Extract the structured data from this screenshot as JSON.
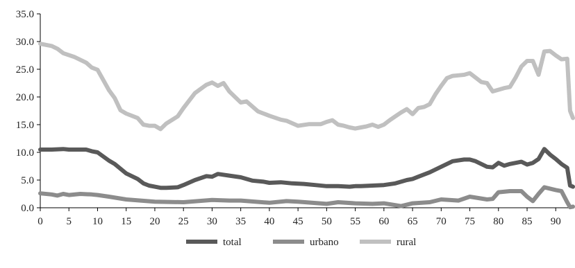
{
  "chart_data": {
    "type": "line",
    "title": "",
    "xlabel": "",
    "ylabel": "",
    "xlim": [
      0,
      93
    ],
    "ylim": [
      0,
      35
    ],
    "x_ticks": [
      0,
      5,
      10,
      15,
      20,
      25,
      30,
      35,
      40,
      45,
      50,
      55,
      60,
      65,
      70,
      75,
      80,
      85,
      90
    ],
    "x_tick_labels": [
      "0",
      "5",
      "10",
      "15",
      "20",
      "25",
      "30",
      "35",
      "40",
      "45",
      "50",
      "55",
      "60",
      "65",
      "70",
      "75",
      "80",
      "85",
      "90"
    ],
    "y_ticks": [
      0,
      5,
      10,
      15,
      20,
      25,
      30,
      35
    ],
    "y_tick_labels": [
      "0.0",
      "5.0",
      "10.0",
      "15.0",
      "20.0",
      "25.0",
      "30.0",
      "35.0"
    ],
    "grid": false,
    "legend_position": "bottom-center",
    "series": [
      {
        "name": "total",
        "color": "#595959",
        "x": [
          0,
          2,
          4,
          5,
          6,
          8,
          9,
          10,
          12,
          13,
          15,
          17,
          18,
          19,
          20,
          21,
          22,
          24,
          25,
          27,
          29,
          30,
          31,
          33,
          35,
          37,
          39,
          40,
          42,
          44,
          46,
          48,
          50,
          52,
          54,
          55,
          56,
          58,
          60,
          62,
          64,
          65,
          66,
          68,
          70,
          72,
          74,
          75,
          76,
          78,
          79,
          80,
          81,
          82,
          84,
          85,
          86,
          87,
          88,
          89,
          90,
          91,
          92,
          92.5,
          93
        ],
        "y": [
          10.5,
          10.5,
          10.6,
          10.5,
          10.5,
          10.5,
          10.2,
          10.0,
          8.5,
          7.9,
          6.2,
          5.2,
          4.4,
          4.0,
          3.8,
          3.6,
          3.6,
          3.7,
          4.1,
          5.0,
          5.7,
          5.6,
          6.1,
          5.8,
          5.5,
          4.9,
          4.7,
          4.5,
          4.6,
          4.4,
          4.3,
          4.1,
          3.9,
          3.9,
          3.8,
          3.9,
          3.9,
          4.0,
          4.1,
          4.4,
          5.0,
          5.2,
          5.6,
          6.4,
          7.4,
          8.4,
          8.7,
          8.7,
          8.4,
          7.4,
          7.3,
          8.1,
          7.6,
          7.9,
          8.3,
          7.8,
          8.1,
          8.8,
          10.6,
          9.6,
          8.8,
          7.9,
          7.2,
          4.0,
          3.8
        ]
      },
      {
        "name": "urbano",
        "color": "#8c8c8c",
        "x": [
          0,
          2,
          3,
          4,
          5,
          7,
          9,
          10,
          12,
          15,
          20,
          25,
          30,
          33,
          35,
          40,
          43,
          45,
          50,
          52,
          55,
          58,
          60,
          63,
          65,
          68,
          70,
          73,
          75,
          78,
          79,
          80,
          82,
          84,
          85,
          86,
          87,
          88,
          90,
          91,
          92,
          92.5,
          93
        ],
        "y": [
          2.6,
          2.4,
          2.2,
          2.5,
          2.3,
          2.5,
          2.4,
          2.3,
          2.0,
          1.5,
          1.1,
          1.0,
          1.4,
          1.3,
          1.3,
          0.9,
          1.2,
          1.1,
          0.7,
          1.0,
          0.8,
          0.7,
          0.8,
          0.3,
          0.8,
          1.0,
          1.5,
          1.3,
          2.0,
          1.5,
          1.6,
          2.8,
          3.0,
          3.0,
          2.0,
          1.2,
          2.5,
          3.7,
          3.2,
          3.0,
          1.0,
          0.1,
          0.2
        ]
      },
      {
        "name": "rural",
        "color": "#c0c0c0",
        "x": [
          0,
          2,
          3,
          4,
          6,
          8,
          9,
          10,
          12,
          13,
          14,
          15,
          17,
          18,
          19,
          20,
          21,
          22,
          24,
          25,
          27,
          29,
          30,
          31,
          32,
          33,
          34,
          35,
          36,
          38,
          40,
          42,
          43,
          45,
          47,
          49,
          50,
          51,
          52,
          53,
          54,
          55,
          56,
          57,
          58,
          59,
          60,
          61,
          62,
          63,
          64,
          65,
          66,
          67,
          68,
          69,
          70,
          71,
          72,
          73,
          74,
          75,
          76,
          77,
          78,
          79,
          80,
          81,
          82,
          83,
          84,
          85,
          86,
          87,
          88,
          89,
          90,
          91,
          92,
          92.5,
          93
        ],
        "y": [
          29.6,
          29.2,
          28.7,
          27.9,
          27.2,
          26.2,
          25.3,
          24.9,
          21.2,
          19.8,
          17.6,
          17.0,
          16.2,
          15.0,
          14.8,
          14.8,
          14.2,
          15.2,
          16.5,
          18.0,
          20.7,
          22.2,
          22.6,
          22.0,
          22.5,
          21.0,
          20.0,
          19.0,
          19.2,
          17.4,
          16.6,
          15.9,
          15.7,
          14.8,
          15.1,
          15.1,
          15.5,
          15.8,
          15.0,
          14.8,
          14.5,
          14.3,
          14.5,
          14.7,
          15.0,
          14.6,
          15.0,
          15.8,
          16.5,
          17.2,
          17.8,
          16.9,
          18.0,
          18.2,
          18.7,
          20.5,
          22.0,
          23.4,
          23.8,
          23.9,
          24.0,
          24.3,
          23.5,
          22.7,
          22.5,
          21.0,
          21.3,
          21.6,
          21.8,
          23.5,
          25.5,
          26.5,
          26.5,
          24.0,
          28.2,
          28.3,
          27.5,
          26.8,
          26.9,
          17.5,
          16.2
        ]
      }
    ]
  }
}
